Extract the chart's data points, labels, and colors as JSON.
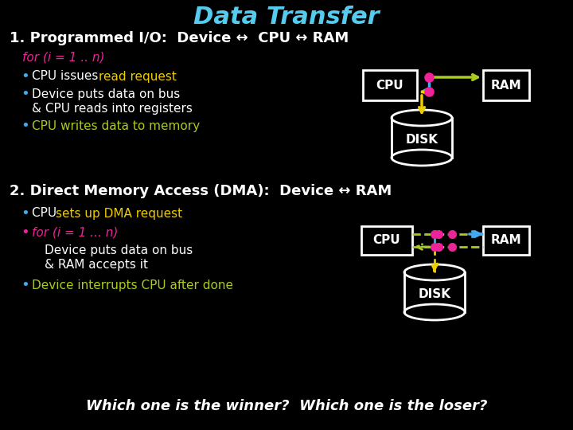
{
  "background_color": "#000000",
  "title": "Data Transfer",
  "title_color": "#55ccee",
  "title_fontsize": 22,
  "white": "#ffffff",
  "green": "#aacc22",
  "pink": "#ee2299",
  "cyan": "#44aaee",
  "yellow": "#eecc00",
  "bullet_cyan": "#44aaee",
  "s1_header": "1. Programmed I/O:  Device ↔  CPU ↔ RAM",
  "s2_header": "2. Direct Memory Access (DMA):  Device ↔ RAM",
  "footer": "Which one is the winner?  Which one is the loser?"
}
